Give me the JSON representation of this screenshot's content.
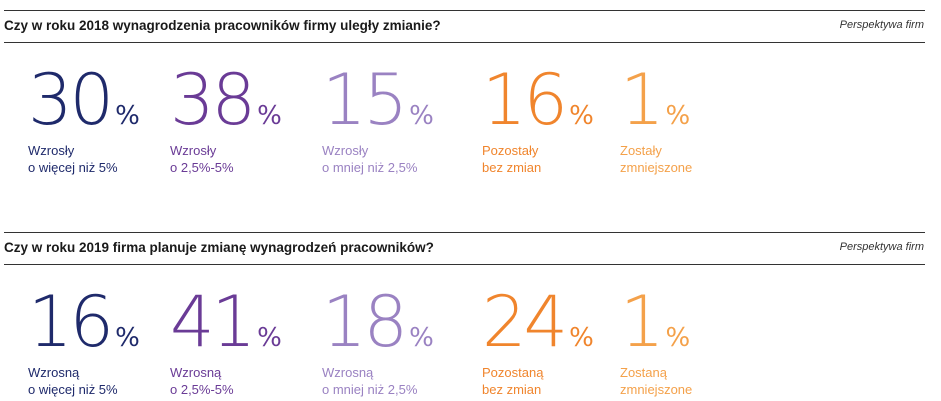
{
  "colors": {
    "navy": "#1f2a6b",
    "purple": "#6a3b96",
    "lavender": "#9a82c2",
    "orange": "#f0852d",
    "light_orange": "#f4a14a"
  },
  "sections": [
    {
      "question": "Czy w roku 2018 wynagrodzenia pracowników firmy uległy zmianie?",
      "source": "Perspektywa firm",
      "stats": [
        {
          "value": "30",
          "unit": "%",
          "label_line1": "Wzrosły",
          "label_line2": "o więcej niż 5%",
          "color": "#1f2a6b"
        },
        {
          "value": "38",
          "unit": "%",
          "label_line1": "Wzrosły",
          "label_line2": "o 2,5%-5%",
          "color": "#6a3b96"
        },
        {
          "value": "15",
          "unit": "%",
          "label_line1": "Wzrosły",
          "label_line2": "o mniej niż 2,5%",
          "color": "#9a82c2"
        },
        {
          "value": "16",
          "unit": "%",
          "label_line1": "Pozostały",
          "label_line2": "bez zmian",
          "color": "#f0852d"
        },
        {
          "value": "1",
          "unit": "%",
          "label_line1": "Zostały",
          "label_line2": "zmniejszone",
          "color": "#f4a14a"
        }
      ]
    },
    {
      "question": "Czy w roku 2019 firma planuje zmianę wynagrodzeń pracowników?",
      "source": "Perspektywa firm",
      "stats": [
        {
          "value": "16",
          "unit": "%",
          "label_line1": "Wzrosną",
          "label_line2": "o więcej niż 5%",
          "color": "#1f2a6b"
        },
        {
          "value": "41",
          "unit": "%",
          "label_line1": "Wzrosną",
          "label_line2": "o 2,5%-5%",
          "color": "#6a3b96"
        },
        {
          "value": "18",
          "unit": "%",
          "label_line1": "Wzrosną",
          "label_line2": "o mniej niż 2,5%",
          "color": "#9a82c2"
        },
        {
          "value": "24",
          "unit": "%",
          "label_line1": "Pozostaną",
          "label_line2": "bez zmian",
          "color": "#f0852d"
        },
        {
          "value": "1",
          "unit": "%",
          "label_line1": "Zostaną",
          "label_line2": "zmniejszone",
          "color": "#f4a14a"
        }
      ]
    }
  ],
  "chart_data": [
    {
      "type": "table",
      "title": "Czy w roku 2018 wynagrodzenia pracowników firmy uległy zmianie?",
      "categories": [
        "Wzrosły o więcej niż 5%",
        "Wzrosły o 2,5%-5%",
        "Wzrosły o mniej niż 2,5%",
        "Pozostały bez zmian",
        "Zostały zmniejszone"
      ],
      "values": [
        30,
        38,
        15,
        16,
        1
      ]
    },
    {
      "type": "table",
      "title": "Czy w roku 2019 firma planuje zmianę wynagrodzeń pracowników?",
      "categories": [
        "Wzrosną o więcej niż 5%",
        "Wzrosną o 2,5%-5%",
        "Wzrosną o mniej niż 2,5%",
        "Pozostaną bez zmian",
        "Zostaną zmniejszone"
      ],
      "values": [
        16,
        41,
        18,
        24,
        1
      ]
    }
  ]
}
